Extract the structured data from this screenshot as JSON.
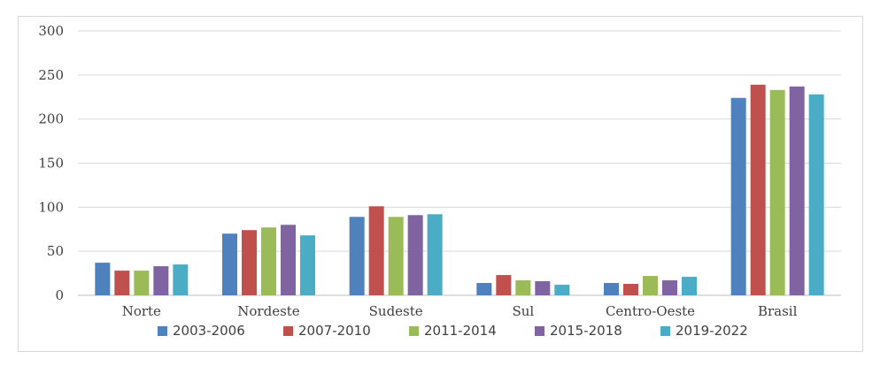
{
  "chart_data": {
    "type": "bar",
    "title": "",
    "xlabel": "",
    "ylabel": "",
    "ylim": [
      0,
      300
    ],
    "yticks": [
      0,
      50,
      100,
      150,
      200,
      250,
      300
    ],
    "grid": true,
    "legend_position": "bottom",
    "categories": [
      "Norte",
      "Nordeste",
      "Sudeste",
      "Sul",
      "Centro-Oeste",
      "Brasil"
    ],
    "series": [
      {
        "name": "2003-2006",
        "color": "#4f81bd",
        "values": [
          37,
          70,
          89,
          14,
          14,
          224
        ]
      },
      {
        "name": "2007-2010",
        "color": "#c0504d",
        "values": [
          28,
          74,
          101,
          23,
          13,
          239
        ]
      },
      {
        "name": "2011-2014",
        "color": "#9bbb59",
        "values": [
          28,
          77,
          89,
          17,
          22,
          233
        ]
      },
      {
        "name": "2015-2018",
        "color": "#8064a2",
        "values": [
          33,
          80,
          91,
          16,
          17,
          237
        ]
      },
      {
        "name": "2019-2022",
        "color": "#4bacc6",
        "values": [
          35,
          68,
          92,
          12,
          21,
          228
        ]
      }
    ]
  }
}
